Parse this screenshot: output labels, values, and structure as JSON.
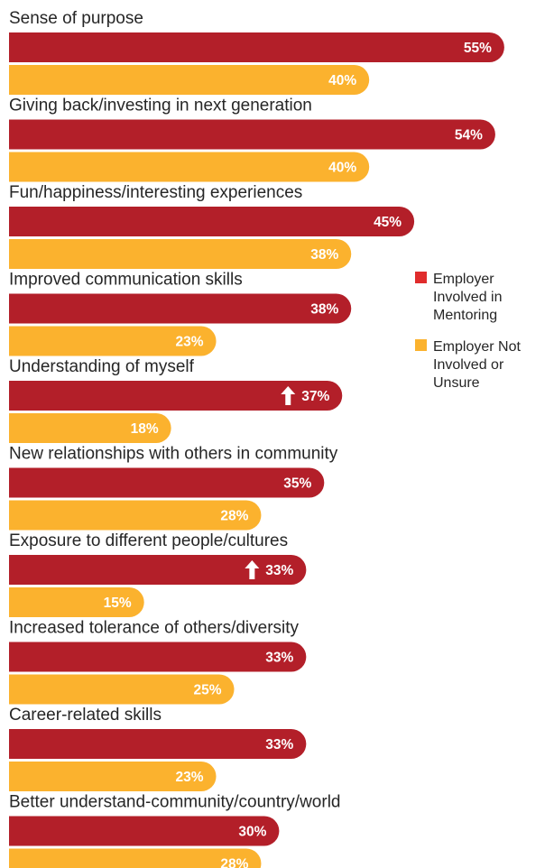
{
  "chart_data": {
    "type": "bar",
    "orientation": "horizontal",
    "categories": [
      "Sense of purpose",
      "Giving back/investing in next generation",
      "Fun/happiness/interesting experiences",
      "Improved communication skills",
      "Understanding of myself",
      "New relationships with others in community",
      "Exposure to different people/cultures",
      "Increased tolerance of others/diversity",
      "Career-related skills",
      "Better understand-community/country/world"
    ],
    "series": [
      {
        "name": "Employer Involved in Mentoring",
        "color": "#b31f29",
        "values": [
          55,
          54,
          45,
          38,
          37,
          35,
          33,
          33,
          33,
          30
        ],
        "labels": [
          "55%",
          "54%",
          "45%",
          "38%",
          "37%",
          "35%",
          "33%",
          "33%",
          "33%",
          "30%"
        ],
        "up_arrow": [
          false,
          false,
          false,
          false,
          true,
          false,
          true,
          false,
          false,
          false
        ]
      },
      {
        "name": "Employer Not Involved or Unsure",
        "color": "#fbb22e",
        "values": [
          40,
          40,
          38,
          23,
          18,
          28,
          15,
          25,
          23,
          28
        ],
        "labels": [
          "40%",
          "40%",
          "38%",
          "23%",
          "18%",
          "28%",
          "15%",
          "25%",
          "23%",
          "28%"
        ]
      }
    ],
    "legend": {
      "position": "right",
      "items": [
        {
          "lines": [
            "Employer",
            "Involved in",
            "Mentoring"
          ],
          "color": "#e02c2c"
        },
        {
          "lines": [
            "Employer Not",
            "Involved or",
            "Unsure"
          ],
          "color": "#fbb22e"
        }
      ]
    },
    "title": "",
    "xlabel": "",
    "ylabel": "",
    "xlim": [
      0,
      60
    ],
    "grid": false
  }
}
